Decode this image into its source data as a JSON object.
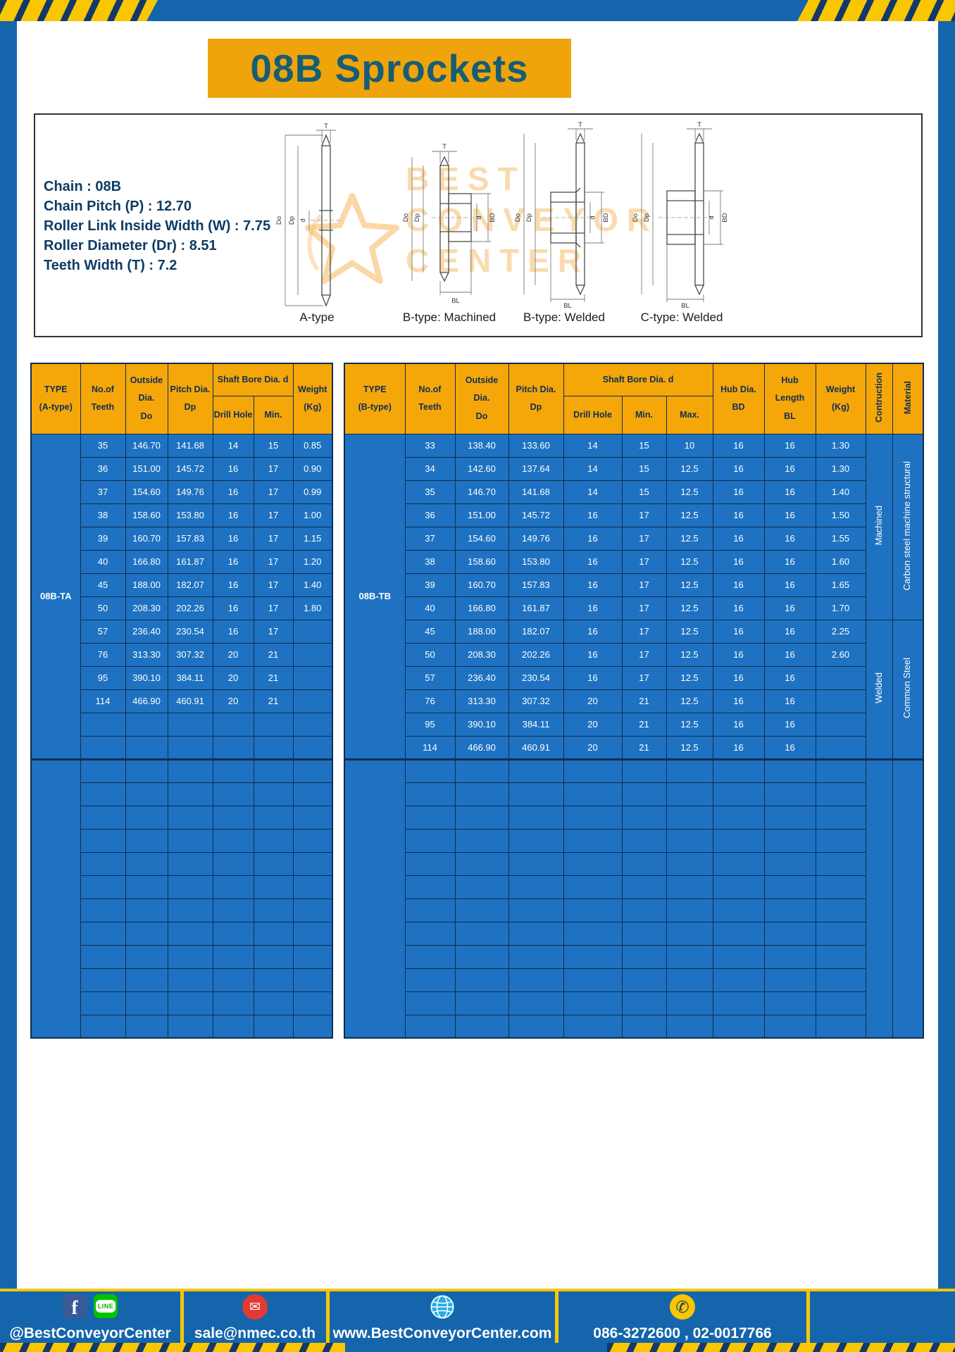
{
  "banner": {
    "title": "08B Sprockets"
  },
  "info": {
    "spec_lines": [
      "Chain : 08B",
      "Chain Pitch (P) : 12.70",
      "Roller Link Inside Width (W) : 7.75",
      "Roller Diameter (Dr) : 8.51",
      "Teeth Width (T) : 7.2"
    ],
    "watermark_lines": [
      "BEST",
      "CONVEYOR",
      "CENTER"
    ],
    "diagram_labels": [
      "A-type",
      "B-type: Machined",
      "B-type: Welded",
      "C-type: Welded"
    ],
    "dims": {
      "T": "T",
      "Do": "Do",
      "Dp": "Dp",
      "d": "d",
      "BD": "BD",
      "BL": "BL"
    }
  },
  "table_a": {
    "headers": {
      "type": "TYPE\n(A-type)",
      "teeth": "No.of\nTeeth",
      "outside": "Outside\nDia.\nDo",
      "pitch": "Pitch Dia.\nDp",
      "shaft_bore": "Shaft Bore Dia. d",
      "drill_hole": "Drill Hole",
      "min": "Min.",
      "weight": "Weight\n(Kg)"
    },
    "type_value": "08B-TA",
    "rows": [
      [
        "35",
        "146.70",
        "141.68",
        "14",
        "15",
        "0.85"
      ],
      [
        "36",
        "151.00",
        "145.72",
        "16",
        "17",
        "0.90"
      ],
      [
        "37",
        "154.60",
        "149.76",
        "16",
        "17",
        "0.99"
      ],
      [
        "38",
        "158.60",
        "153.80",
        "16",
        "17",
        "1.00"
      ],
      [
        "39",
        "160.70",
        "157.83",
        "16",
        "17",
        "1.15"
      ],
      [
        "40",
        "166.80",
        "161.87",
        "16",
        "17",
        "1.20"
      ],
      [
        "45",
        "188.00",
        "182.07",
        "16",
        "17",
        "1.40"
      ],
      [
        "50",
        "208.30",
        "202.26",
        "16",
        "17",
        "1.80"
      ],
      [
        "57",
        "236.40",
        "230.54",
        "16",
        "17",
        ""
      ],
      [
        "76",
        "313.30",
        "307.32",
        "20",
        "21",
        ""
      ],
      [
        "95",
        "390.10",
        "384.11",
        "20",
        "21",
        ""
      ],
      [
        "114",
        "466.90",
        "460.91",
        "20",
        "21",
        ""
      ]
    ],
    "blank_block_rows": 2,
    "empty_rows": 12
  },
  "table_b": {
    "headers": {
      "type": "TYPE\n(B-type)",
      "teeth": "No.of\nTeeth",
      "outside": "Outside\nDia.\nDo",
      "pitch": "Pitch Dia.\nDp",
      "shaft_bore": "Shaft Bore Dia. d",
      "drill_hole": "Drill Hole",
      "min": "Min.",
      "max": "Max.",
      "hub_dia": "Hub Dia.\nBD",
      "hub_length": "Hub\nLength\nBL",
      "weight": "Weight\n(Kg)",
      "construction": "Contruction",
      "material": "Material"
    },
    "type_value": "08B-TB",
    "rows": [
      [
        "33",
        "138.40",
        "133.60",
        "14",
        "15",
        "10",
        "16",
        "16",
        "1.30"
      ],
      [
        "34",
        "142.60",
        "137.64",
        "14",
        "15",
        "12.5",
        "16",
        "16",
        "1.30"
      ],
      [
        "35",
        "146.70",
        "141.68",
        "14",
        "15",
        "12.5",
        "16",
        "16",
        "1.40"
      ],
      [
        "36",
        "151.00",
        "145.72",
        "16",
        "17",
        "12.5",
        "16",
        "16",
        "1.50"
      ],
      [
        "37",
        "154.60",
        "149.76",
        "16",
        "17",
        "12.5",
        "16",
        "16",
        "1.55"
      ],
      [
        "38",
        "158.60",
        "153.80",
        "16",
        "17",
        "12.5",
        "16",
        "16",
        "1.60"
      ],
      [
        "39",
        "160.70",
        "157.83",
        "16",
        "17",
        "12.5",
        "16",
        "16",
        "1.65"
      ],
      [
        "40",
        "166.80",
        "161.87",
        "16",
        "17",
        "12.5",
        "16",
        "16",
        "1.70"
      ],
      [
        "45",
        "188.00",
        "182.07",
        "16",
        "17",
        "12.5",
        "16",
        "16",
        "2.25"
      ],
      [
        "50",
        "208.30",
        "202.26",
        "16",
        "17",
        "12.5",
        "16",
        "16",
        "2.60"
      ],
      [
        "57",
        "236.40",
        "230.54",
        "16",
        "17",
        "12.5",
        "16",
        "16",
        ""
      ],
      [
        "76",
        "313.30",
        "307.32",
        "20",
        "21",
        "12.5",
        "16",
        "16",
        ""
      ],
      [
        "95",
        "390.10",
        "384.11",
        "20",
        "21",
        "12.5",
        "16",
        "16",
        ""
      ],
      [
        "114",
        "466.90",
        "460.91",
        "20",
        "21",
        "12.5",
        "16",
        "16",
        ""
      ]
    ],
    "construction_segments": [
      {
        "label": "Machined",
        "span": 8
      },
      {
        "label": "Welded",
        "span": 6
      }
    ],
    "material_segments": [
      {
        "label": "Carbon steel machine structural",
        "span": 8
      },
      {
        "label": "Common Steel",
        "span": 6
      }
    ],
    "blank_block_rows": 0,
    "empty_rows": 12
  },
  "footer": {
    "social": "@BestConveyorCenter",
    "email": "sale@nmec.co.th",
    "website": "www.BestConveyorCenter.com",
    "phone": "086-3272600 , 02-0017766",
    "facebook_glyph": "f",
    "line_glyph": "LINE",
    "email_glyph": "✉",
    "phone_glyph": "✆"
  }
}
